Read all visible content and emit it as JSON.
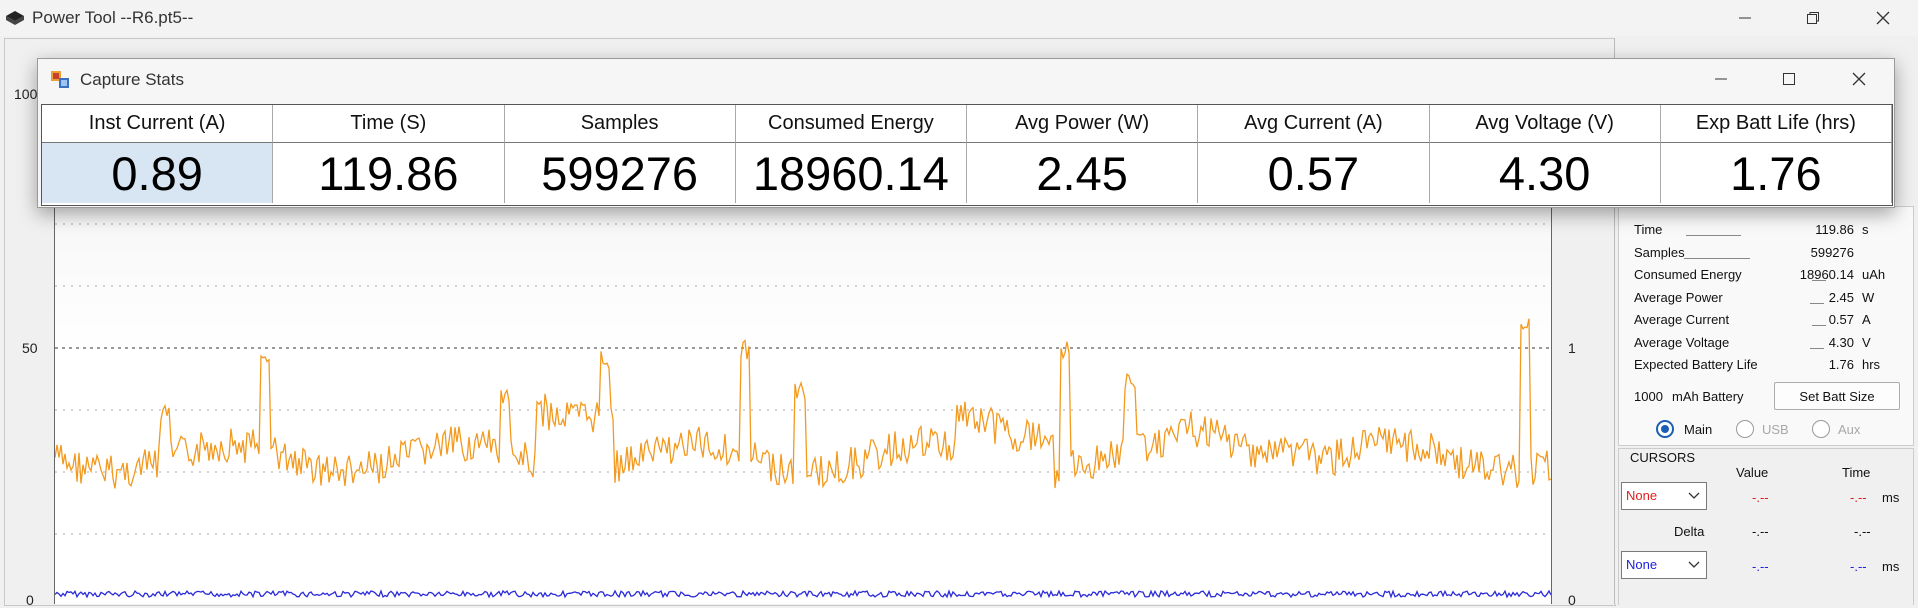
{
  "window": {
    "title": "Power Tool --R6.pt5--"
  },
  "plot": {
    "left_axis_ticks": [
      "100",
      "50",
      "0"
    ],
    "right_axis_ticks": [
      "1",
      "0"
    ],
    "series_colors": {
      "main": "#f39a1e",
      "secondary": "#2a2ad8"
    }
  },
  "capture_stats": {
    "title": "Capture Stats",
    "columns": [
      {
        "header": "Inst Current (A)",
        "value": "0.89"
      },
      {
        "header": "Time (S)",
        "value": "119.86"
      },
      {
        "header": "Samples",
        "value": "599276"
      },
      {
        "header": "Consumed Energy",
        "value": "18960.14"
      },
      {
        "header": "Avg Power (W)",
        "value": "2.45"
      },
      {
        "header": "Avg Current (A)",
        "value": "0.57"
      },
      {
        "header": "Avg Voltage (V)",
        "value": "4.30"
      },
      {
        "header": "Exp Batt Life (hrs)",
        "value": "1.76"
      }
    ]
  },
  "side_panel": {
    "stats": [
      {
        "label": "Time",
        "value": "119.86",
        "unit": "s"
      },
      {
        "label": "Samples",
        "value": "599276",
        "unit": ""
      },
      {
        "label": "Consumed Energy",
        "value": "18960.14",
        "unit": "uAh"
      },
      {
        "label": "Average Power",
        "value": "2.45",
        "unit": "W"
      },
      {
        "label": "Average Current",
        "value": "0.57",
        "unit": "A"
      },
      {
        "label": "Average Voltage",
        "value": "4.30",
        "unit": "V"
      },
      {
        "label": "Expected Battery Life",
        "value": "1.76",
        "unit": "hrs"
      }
    ],
    "battery_capacity": "1000",
    "battery_unit_label": "mAh Battery",
    "set_batt_size_label": "Set Batt Size",
    "channels": [
      {
        "label": "Main",
        "selected": true
      },
      {
        "label": "USB",
        "selected": false
      },
      {
        "label": "Aux",
        "selected": false
      }
    ],
    "cursors": {
      "title": "CURSORS",
      "value_header": "Value",
      "time_header": "Time",
      "cursor1_select": "None",
      "cursor1_value": "-.--",
      "cursor1_time": "-.--",
      "cursor1_unit": "ms",
      "delta_label": "Delta",
      "delta_value": "-.--",
      "delta_time": "-.--",
      "cursor2_select": "None",
      "cursor2_value": "-.--",
      "cursor2_time": "-.--",
      "cursor2_unit": "ms",
      "cursor1_color": "#e02020",
      "cursor2_color": "#2020e0"
    }
  }
}
